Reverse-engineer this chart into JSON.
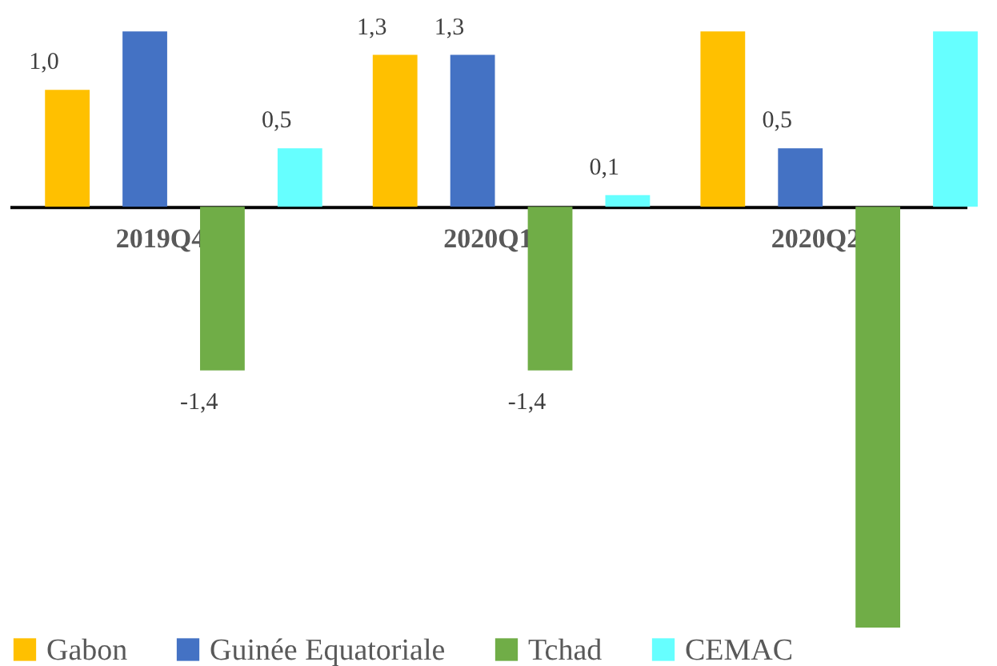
{
  "chart_data": {
    "type": "bar",
    "categories": [
      "2019Q4",
      "2020Q1",
      "2020Q2"
    ],
    "series": [
      {
        "name": "Gabon",
        "color": "#ffc000",
        "values": [
          1.0,
          1.3,
          1.5
        ],
        "value_labels": [
          "1,0",
          "1,3",
          null
        ]
      },
      {
        "name": "Guinée Equatoriale",
        "color": "#4472c4",
        "values": [
          1.5,
          1.3,
          0.5
        ],
        "value_labels": [
          null,
          "1,3",
          "0,5"
        ]
      },
      {
        "name": "Tchad",
        "color": "#70ad47",
        "values": [
          -1.4,
          -1.4,
          -3.6
        ],
        "value_labels": [
          "-1,4",
          "-1,4",
          null
        ]
      },
      {
        "name": "CEMAC",
        "color": "#66ffff",
        "values": [
          0.5,
          0.1,
          1.5
        ],
        "value_labels": [
          "0,5",
          "0,1",
          null
        ]
      }
    ],
    "ylim": [
      -3.6,
      1.55
    ],
    "tick_labels": "x",
    "legend": "bottom"
  }
}
